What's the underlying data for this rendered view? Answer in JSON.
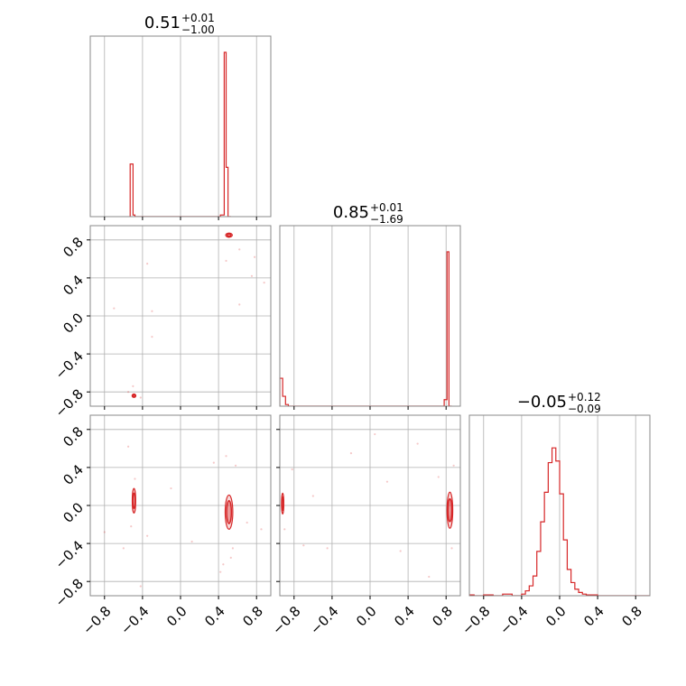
{
  "chart_data": {
    "type": "corner",
    "variables": [
      {
        "median": "0.51",
        "plus": "+0.01",
        "minus": "−1.00"
      },
      {
        "median": "0.85",
        "plus": "+0.01",
        "minus": "−1.69"
      },
      {
        "median": "−0.05",
        "plus": "+0.12",
        "minus": "−0.09"
      }
    ],
    "axis_range": [
      -0.95,
      0.95
    ],
    "ticks": [
      -0.8,
      -0.4,
      0.0,
      0.4,
      0.8
    ],
    "tick_labels": [
      "−0.8",
      "−0.4",
      "0.0",
      "0.4",
      "0.8"
    ],
    "grid": true,
    "color": "#d62728",
    "histograms": [
      {
        "variable": 0,
        "bin_edges": [
          -0.53,
          -0.5,
          -0.48,
          -0.46,
          0.42,
          0.46,
          0.48,
          0.5,
          0.53
        ],
        "counts": [
          0.32,
          0.01,
          0.0,
          0.0,
          0.01,
          1.0,
          0.3,
          0.0
        ]
      },
      {
        "variable": 1,
        "bin_edges": [
          -0.95,
          -0.92,
          -0.89,
          -0.86,
          0.78,
          0.81,
          0.83,
          0.86
        ],
        "counts": [
          0.17,
          0.06,
          0.01,
          0.0,
          0.04,
          0.94,
          0.0
        ]
      },
      {
        "variable": 2,
        "bin_edges": [
          -0.95,
          -0.9,
          -0.8,
          -0.7,
          -0.6,
          -0.5,
          -0.4,
          -0.36,
          -0.32,
          -0.28,
          -0.24,
          -0.2,
          -0.16,
          -0.12,
          -0.08,
          -0.04,
          0.0,
          0.04,
          0.08,
          0.12,
          0.16,
          0.2,
          0.24,
          0.28,
          0.4,
          0.95
        ],
        "counts": [
          0.005,
          0.0,
          0.005,
          0.0,
          0.01,
          0.0,
          0.01,
          0.03,
          0.06,
          0.12,
          0.27,
          0.45,
          0.63,
          0.81,
          0.9,
          0.82,
          0.62,
          0.34,
          0.16,
          0.08,
          0.04,
          0.02,
          0.01,
          0.005,
          0.0
        ]
      }
    ],
    "contours": [
      {
        "row": 1,
        "col": 0,
        "x": 0.51,
        "y": 0.85,
        "sx": [
          0.02,
          0.035
        ],
        "sy": [
          0.012,
          0.022
        ]
      },
      {
        "row": 1,
        "col": 0,
        "x": -0.49,
        "y": -0.84,
        "sx": [
          0.012,
          0.02
        ],
        "sy": [
          0.01,
          0.018
        ]
      },
      {
        "row": 2,
        "col": 0,
        "x": -0.49,
        "y": 0.05,
        "sx": [
          0.012,
          0.018
        ],
        "sy": [
          0.08,
          0.13
        ]
      },
      {
        "row": 2,
        "col": 0,
        "x": 0.51,
        "y": -0.07,
        "sx": [
          0.025,
          0.04
        ],
        "sy": [
          0.12,
          0.18
        ]
      },
      {
        "row": 2,
        "col": 1,
        "x": -0.92,
        "y": 0.02,
        "sx": [
          0.008,
          0.012
        ],
        "sy": [
          0.07,
          0.11
        ]
      },
      {
        "row": 2,
        "col": 1,
        "x": 0.84,
        "y": -0.05,
        "sx": [
          0.02,
          0.03
        ],
        "sy": [
          0.12,
          0.19
        ]
      }
    ],
    "scatter": [
      {
        "row": 1,
        "col": 0,
        "points": [
          [
            -0.7,
            0.08
          ],
          [
            -0.35,
            0.55
          ],
          [
            -0.3,
            0.05
          ],
          [
            -0.3,
            -0.22
          ],
          [
            0.3,
            0.98
          ],
          [
            0.48,
            0.58
          ],
          [
            0.62,
            0.7
          ],
          [
            0.62,
            0.12
          ],
          [
            0.75,
            0.42
          ],
          [
            0.78,
            0.62
          ],
          [
            0.88,
            0.35
          ],
          [
            0.45,
            0.98
          ],
          [
            -0.55,
            -0.8
          ],
          [
            -0.42,
            -0.86
          ],
          [
            -0.5,
            -0.74
          ]
        ]
      },
      {
        "row": 2,
        "col": 0,
        "points": [
          [
            -0.42,
            -0.85
          ],
          [
            -0.35,
            -0.32
          ],
          [
            -0.1,
            0.18
          ],
          [
            -0.8,
            -0.28
          ],
          [
            -0.6,
            -0.45
          ],
          [
            0.12,
            -0.38
          ],
          [
            0.45,
            -0.62
          ],
          [
            0.55,
            -0.45
          ],
          [
            0.58,
            0.42
          ],
          [
            0.35,
            0.45
          ],
          [
            -0.55,
            0.62
          ],
          [
            0.7,
            -0.18
          ],
          [
            0.85,
            -0.25
          ],
          [
            -0.48,
            0.28
          ],
          [
            -0.52,
            -0.22
          ],
          [
            0.48,
            0.52
          ],
          [
            0.53,
            -0.55
          ],
          [
            0.42,
            -0.7
          ]
        ]
      },
      {
        "row": 2,
        "col": 1,
        "points": [
          [
            -0.45,
            -0.45
          ],
          [
            -0.7,
            -0.42
          ],
          [
            -0.2,
            0.55
          ],
          [
            0.05,
            0.75
          ],
          [
            0.18,
            0.25
          ],
          [
            0.32,
            -0.48
          ],
          [
            0.62,
            -0.75
          ],
          [
            0.72,
            0.3
          ],
          [
            -0.82,
            0.38
          ],
          [
            -0.9,
            -0.25
          ],
          [
            0.88,
            0.42
          ],
          [
            0.86,
            -0.45
          ],
          [
            0.5,
            0.65
          ],
          [
            -0.6,
            0.1
          ]
        ]
      }
    ]
  }
}
